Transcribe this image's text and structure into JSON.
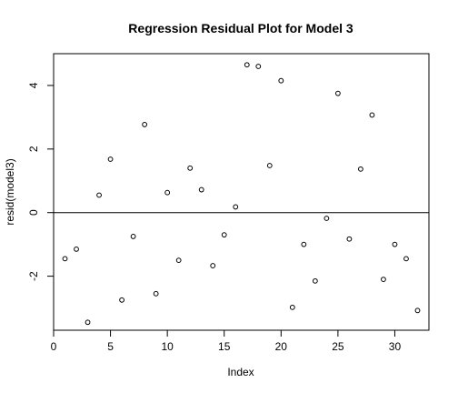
{
  "chart_data": {
    "type": "scatter",
    "title": "Regression Residual Plot for Model 3",
    "xlabel": "Index",
    "ylabel": "resid(model3)",
    "xlim": [
      0,
      33
    ],
    "ylim": [
      -3.7,
      5.0
    ],
    "x_ticks": [
      {
        "value": 0,
        "label": "0"
      },
      {
        "value": 5,
        "label": "5"
      },
      {
        "value": 10,
        "label": "10"
      },
      {
        "value": 15,
        "label": "15"
      },
      {
        "value": 20,
        "label": "20"
      },
      {
        "value": 25,
        "label": "25"
      },
      {
        "value": 30,
        "label": "30"
      }
    ],
    "y_ticks": [
      {
        "value": -2,
        "label": "-2"
      },
      {
        "value": 0,
        "label": "0"
      },
      {
        "value": 2,
        "label": "2"
      },
      {
        "value": 4,
        "label": "4"
      }
    ],
    "reference_line_y": 0,
    "grid": false,
    "marker": "open-circle",
    "colors": {
      "points": "#000000",
      "axes": "#000000",
      "background": "#ffffff"
    },
    "x": [
      1,
      2,
      3,
      4,
      5,
      6,
      7,
      8,
      9,
      10,
      11,
      12,
      13,
      14,
      15,
      16,
      17,
      18,
      19,
      20,
      21,
      22,
      23,
      24,
      25,
      26,
      27,
      28,
      29,
      30,
      31,
      32
    ],
    "y": [
      -1.45,
      -1.15,
      -3.45,
      0.55,
      1.68,
      -2.75,
      -0.75,
      2.77,
      -2.55,
      0.63,
      -1.5,
      1.4,
      0.72,
      -1.67,
      -0.7,
      0.18,
      4.65,
      4.6,
      1.48,
      4.15,
      -2.98,
      -1.0,
      -2.15,
      -0.18,
      3.75,
      -0.83,
      1.37,
      3.07,
      -2.1,
      -1.0,
      -1.45,
      -3.08
    ]
  }
}
